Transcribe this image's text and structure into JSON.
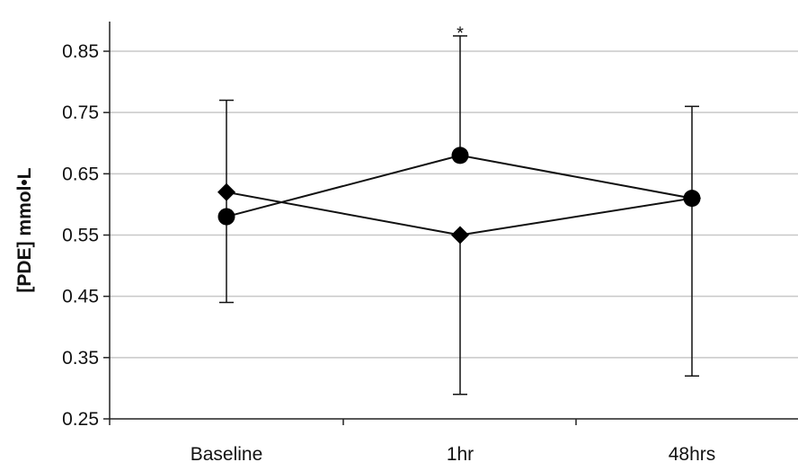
{
  "chart_data": {
    "type": "line",
    "title": "",
    "xlabel": "",
    "ylabel": "[PDE] mmol•L",
    "categories": [
      "Baseline",
      "1hr",
      "48hrs"
    ],
    "ylim": [
      0.25,
      0.85
    ],
    "yticks": [
      "0.25",
      "0.35",
      "0.45",
      "0.55",
      "0.65",
      "0.75",
      "0.85"
    ],
    "ytick_values": [
      0.25,
      0.35,
      0.45,
      0.55,
      0.65,
      0.75,
      0.85
    ],
    "grid": true,
    "legend": "none",
    "series": [
      {
        "marker": "diamond",
        "values": [
          0.62,
          0.55,
          0.61
        ],
        "error_upper": [
          0.77,
          null,
          0.76
        ],
        "error_lower": [
          0.44,
          0.29,
          0.32
        ]
      },
      {
        "marker": "circle",
        "values": [
          0.58,
          0.68,
          0.61
        ],
        "error_upper": [
          null,
          0.875,
          null
        ],
        "error_lower": [
          null,
          null,
          null
        ]
      }
    ],
    "annotations": [
      {
        "text": "*",
        "category": "1hr",
        "y": 0.89
      }
    ]
  }
}
